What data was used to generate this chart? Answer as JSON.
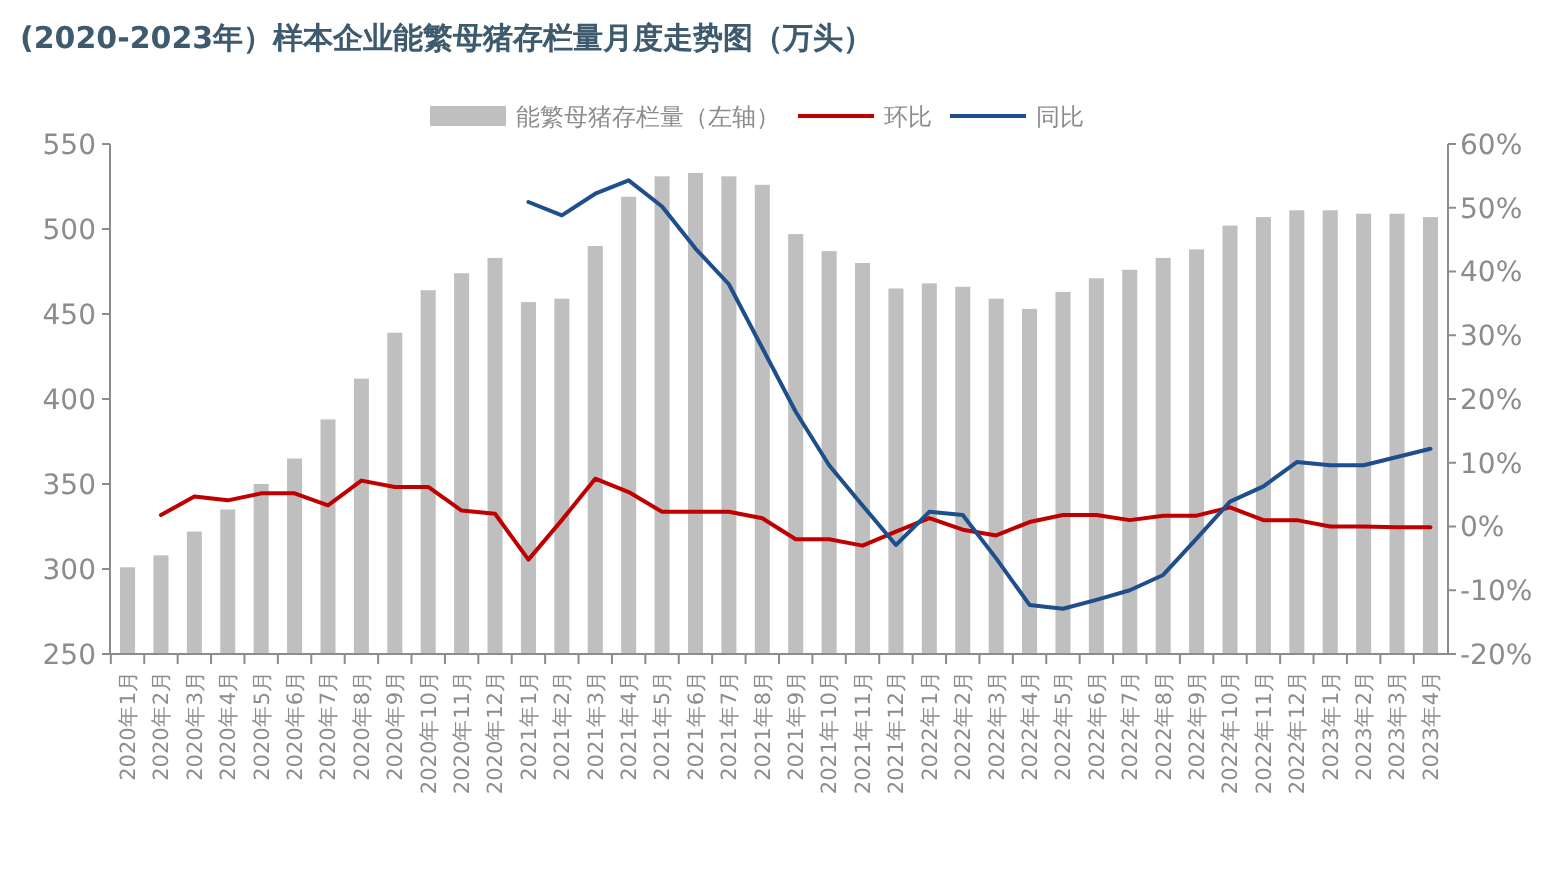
{
  "chart_data": {
    "type": "bar",
    "title": "(2020-2023年）样本企业能繁母猪存栏量月度走势图（万头）",
    "categories": [
      "2020年1月",
      "2020年2月",
      "2020年3月",
      "2020年4月",
      "2020年5月",
      "2020年6月",
      "2020年7月",
      "2020年8月",
      "2020年9月",
      "2020年10月",
      "2020年11月",
      "2020年12月",
      "2021年1月",
      "2021年2月",
      "2021年3月",
      "2021年4月",
      "2021年5月",
      "2021年6月",
      "2021年7月",
      "2021年8月",
      "2021年9月",
      "2021年10月",
      "2021年11月",
      "2021年12月",
      "2022年1月",
      "2022年2月",
      "2022年3月",
      "2022年4月",
      "2022年5月",
      "2022年6月",
      "2022年7月",
      "2022年8月",
      "2022年9月",
      "2022年10月",
      "2022年11月",
      "2022年12月",
      "2023年1月",
      "2023年2月",
      "2023年3月",
      "2023年4月"
    ],
    "series": [
      {
        "name": "能繁母猪存栏量（左轴）",
        "color": "#bfbfbf",
        "values": [
          301,
          308,
          322,
          335,
          350,
          365,
          388,
          412,
          439,
          464,
          474,
          483,
          457,
          459,
          490,
          519,
          531,
          533,
          531,
          526,
          497,
          487,
          480,
          465,
          468,
          466,
          459,
          453,
          463,
          471,
          476,
          483,
          488,
          502,
          507,
          511,
          511,
          509,
          509,
          507
        ]
      },
      {
        "name": "环比",
        "type": "line",
        "axis": "y2",
        "color": "#c00000",
        "values": [
          null,
          1.8,
          4.7,
          4.1,
          5.2,
          5.2,
          3.3,
          7.2,
          6.2,
          6.2,
          2.5,
          2.0,
          -5.2,
          1.0,
          7.5,
          5.4,
          2.3,
          2.3,
          2.3,
          1.3,
          -2,
          -2,
          -3,
          -0.8,
          1.3,
          -0.5,
          -1.4,
          0.7,
          1.8,
          1.8,
          1.0,
          1.7,
          1.7,
          3.0,
          1.0,
          1.0,
          0,
          0,
          -0.1,
          -0.1
        ]
      },
      {
        "name": "同比",
        "type": "line",
        "axis": "y2",
        "color": "#1f4e8c",
        "values": [
          null,
          null,
          null,
          null,
          null,
          null,
          null,
          null,
          null,
          null,
          null,
          null,
          50.9,
          48.8,
          52.2,
          54.3,
          50.2,
          43.6,
          38.0,
          28.0,
          18.0,
          9.6,
          3.3,
          -2.9,
          2.3,
          1.8,
          -5.0,
          -12.3,
          -12.9,
          -11.5,
          -10.0,
          -7.6,
          -1.9,
          3.9,
          6.3,
          10.1,
          9.6,
          9.6,
          10.9,
          12.2
        ]
      }
    ],
    "ylim": [
      250,
      550
    ],
    "yticks": [
      250,
      300,
      350,
      400,
      450,
      500,
      550
    ],
    "y2lim": [
      -20,
      60
    ],
    "y2ticks": [
      {
        "value": -20,
        "label": "-20%"
      },
      {
        "value": -10,
        "label": "-10%"
      },
      {
        "value": 0,
        "label": "0%"
      },
      {
        "value": 10,
        "label": "10%"
      },
      {
        "value": 20,
        "label": "20%"
      },
      {
        "value": 30,
        "label": "30%"
      },
      {
        "value": 40,
        "label": "40%"
      },
      {
        "value": 50,
        "label": "50%"
      },
      {
        "value": 60,
        "label": "60%"
      }
    ],
    "grid": false,
    "legend": "top"
  }
}
